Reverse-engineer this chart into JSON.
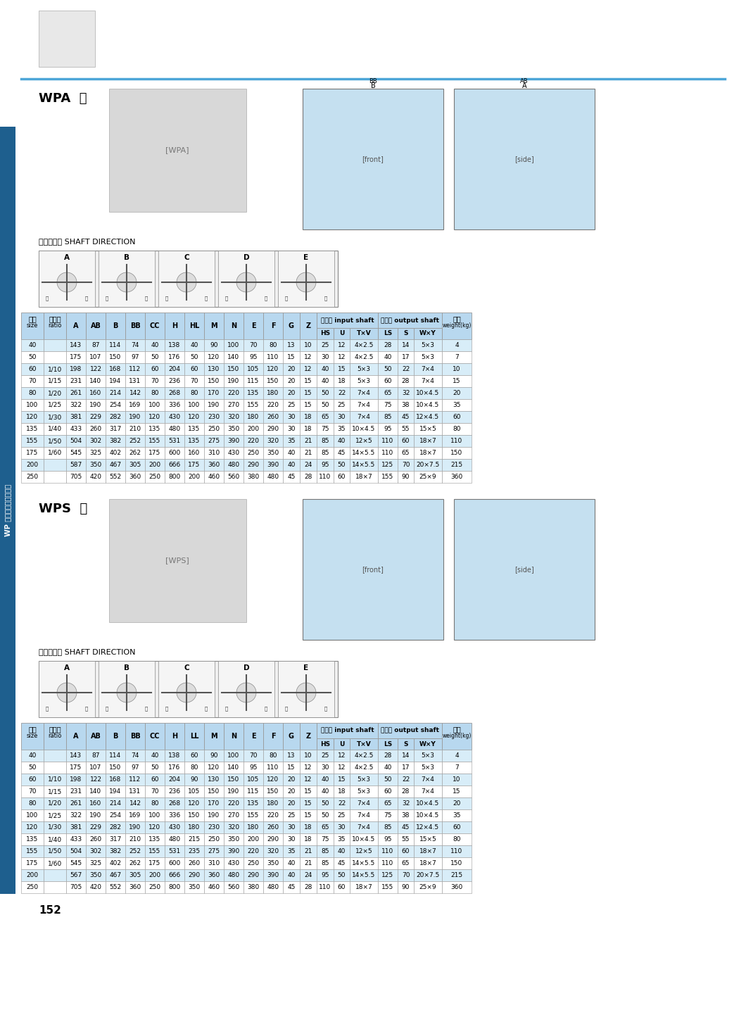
{
  "page_num": "152",
  "blue_line_color": "#4da6d8",
  "table_header_bg": "#b8d8ef",
  "table_alt_row_bg": "#d8edf8",
  "table_border_color": "#999999",
  "section1_label": "WPA  型",
  "section2_label": "WPS  型",
  "shaft_direction_label": "轴指向表示 SHAFT DIRECTION",
  "wpa_az_cols": [
    "A",
    "AB",
    "B",
    "BB",
    "CC",
    "H",
    "HL",
    "M",
    "N",
    "E",
    "F",
    "G",
    "Z"
  ],
  "wps_az_cols": [
    "A",
    "AB",
    "B",
    "BB",
    "CC",
    "H",
    "LL",
    "M",
    "N",
    "E",
    "F",
    "G",
    "Z"
  ],
  "sub_in": [
    "HS",
    "U",
    "T×V"
  ],
  "sub_out": [
    "LS",
    "S",
    "W×Y"
  ],
  "wpa_data": [
    [
      "40",
      "",
      "143",
      "87",
      "114",
      "74",
      "40",
      "138",
      "40",
      "90",
      "100",
      "70",
      "80",
      "13",
      "10",
      "25",
      "12",
      "4×2.5",
      "28",
      "14",
      "5×3",
      "4"
    ],
    [
      "50",
      "",
      "175",
      "107",
      "150",
      "97",
      "50",
      "176",
      "50",
      "120",
      "140",
      "95",
      "110",
      "15",
      "12",
      "30",
      "12",
      "4×2.5",
      "40",
      "17",
      "5×3",
      "7"
    ],
    [
      "60",
      "1/10",
      "198",
      "122",
      "168",
      "112",
      "60",
      "204",
      "60",
      "130",
      "150",
      "105",
      "120",
      "20",
      "12",
      "40",
      "15",
      "5×3",
      "50",
      "22",
      "7×4",
      "10"
    ],
    [
      "70",
      "1/15",
      "231",
      "140",
      "194",
      "131",
      "70",
      "236",
      "70",
      "150",
      "190",
      "115",
      "150",
      "20",
      "15",
      "40",
      "18",
      "5×3",
      "60",
      "28",
      "7×4",
      "15"
    ],
    [
      "80",
      "1/20",
      "261",
      "160",
      "214",
      "142",
      "80",
      "268",
      "80",
      "170",
      "220",
      "135",
      "180",
      "20",
      "15",
      "50",
      "22",
      "7×4",
      "65",
      "32",
      "10×4.5",
      "20"
    ],
    [
      "100",
      "1/25",
      "322",
      "190",
      "254",
      "169",
      "100",
      "336",
      "100",
      "190",
      "270",
      "155",
      "220",
      "25",
      "15",
      "50",
      "25",
      "7×4",
      "75",
      "38",
      "10×4.5",
      "35"
    ],
    [
      "120",
      "1/30",
      "381",
      "229",
      "282",
      "190",
      "120",
      "430",
      "120",
      "230",
      "320",
      "180",
      "260",
      "30",
      "18",
      "65",
      "30",
      "7×4",
      "85",
      "45",
      "12×4.5",
      "60"
    ],
    [
      "135",
      "1/40",
      "433",
      "260",
      "317",
      "210",
      "135",
      "480",
      "135",
      "250",
      "350",
      "200",
      "290",
      "30",
      "18",
      "75",
      "35",
      "10×4.5",
      "95",
      "55",
      "15×5",
      "80"
    ],
    [
      "155",
      "1/50",
      "504",
      "302",
      "382",
      "252",
      "155",
      "531",
      "135",
      "275",
      "390",
      "220",
      "320",
      "35",
      "21",
      "85",
      "40",
      "12×5",
      "110",
      "60",
      "18×7",
      "110"
    ],
    [
      "175",
      "1/60",
      "545",
      "325",
      "402",
      "262",
      "175",
      "600",
      "160",
      "310",
      "430",
      "250",
      "350",
      "40",
      "21",
      "85",
      "45",
      "14×5.5",
      "110",
      "65",
      "18×7",
      "150"
    ],
    [
      "200",
      "",
      "587",
      "350",
      "467",
      "305",
      "200",
      "666",
      "175",
      "360",
      "480",
      "290",
      "390",
      "40",
      "24",
      "95",
      "50",
      "14×5.5",
      "125",
      "70",
      "20×7.5",
      "215"
    ],
    [
      "250",
      "",
      "705",
      "420",
      "552",
      "360",
      "250",
      "800",
      "200",
      "460",
      "560",
      "380",
      "480",
      "45",
      "28",
      "110",
      "60",
      "18×7",
      "155",
      "90",
      "25×9",
      "360"
    ]
  ],
  "wps_data": [
    [
      "40",
      "",
      "143",
      "87",
      "114",
      "74",
      "40",
      "138",
      "60",
      "90",
      "100",
      "70",
      "80",
      "13",
      "10",
      "25",
      "12",
      "4×2.5",
      "28",
      "14",
      "5×3",
      "4"
    ],
    [
      "50",
      "",
      "175",
      "107",
      "150",
      "97",
      "50",
      "176",
      "80",
      "120",
      "140",
      "95",
      "110",
      "15",
      "12",
      "30",
      "12",
      "4×2.5",
      "40",
      "17",
      "5×3",
      "7"
    ],
    [
      "60",
      "1/10",
      "198",
      "122",
      "168",
      "112",
      "60",
      "204",
      "90",
      "130",
      "150",
      "105",
      "120",
      "20",
      "12",
      "40",
      "15",
      "5×3",
      "50",
      "22",
      "7×4",
      "10"
    ],
    [
      "70",
      "1/15",
      "231",
      "140",
      "194",
      "131",
      "70",
      "236",
      "105",
      "150",
      "190",
      "115",
      "150",
      "20",
      "15",
      "40",
      "18",
      "5×3",
      "60",
      "28",
      "7×4",
      "15"
    ],
    [
      "80",
      "1/20",
      "261",
      "160",
      "214",
      "142",
      "80",
      "268",
      "120",
      "170",
      "220",
      "135",
      "180",
      "20",
      "15",
      "50",
      "22",
      "7×4",
      "65",
      "32",
      "10×4.5",
      "20"
    ],
    [
      "100",
      "1/25",
      "322",
      "190",
      "254",
      "169",
      "100",
      "336",
      "150",
      "190",
      "270",
      "155",
      "220",
      "25",
      "15",
      "50",
      "25",
      "7×4",
      "75",
      "38",
      "10×4.5",
      "35"
    ],
    [
      "120",
      "1/30",
      "381",
      "229",
      "282",
      "190",
      "120",
      "430",
      "180",
      "230",
      "320",
      "180",
      "260",
      "30",
      "18",
      "65",
      "30",
      "7×4",
      "85",
      "45",
      "12×4.5",
      "60"
    ],
    [
      "135",
      "1/40",
      "433",
      "260",
      "317",
      "210",
      "135",
      "480",
      "215",
      "250",
      "350",
      "200",
      "290",
      "30",
      "18",
      "75",
      "35",
      "10×4.5",
      "95",
      "55",
      "15×5",
      "80"
    ],
    [
      "155",
      "1/50",
      "504",
      "302",
      "382",
      "252",
      "155",
      "531",
      "235",
      "275",
      "390",
      "220",
      "320",
      "35",
      "21",
      "85",
      "40",
      "12×5",
      "110",
      "60",
      "18×7",
      "110"
    ],
    [
      "175",
      "1/60",
      "545",
      "325",
      "402",
      "262",
      "175",
      "600",
      "260",
      "310",
      "430",
      "250",
      "350",
      "40",
      "21",
      "85",
      "45",
      "14×5.5",
      "110",
      "65",
      "18×7",
      "150"
    ],
    [
      "200",
      "",
      "567",
      "350",
      "467",
      "305",
      "200",
      "666",
      "290",
      "360",
      "480",
      "290",
      "390",
      "40",
      "24",
      "95",
      "50",
      "14×5.5",
      "125",
      "70",
      "20×7.5",
      "215"
    ],
    [
      "250",
      "",
      "705",
      "420",
      "552",
      "360",
      "250",
      "800",
      "350",
      "460",
      "560",
      "380",
      "480",
      "45",
      "28",
      "110",
      "60",
      "18×7",
      "155",
      "90",
      "25×9",
      "360"
    ]
  ],
  "side_label": "WP 系列蜇轮蜇杆减速机",
  "bg_color": "#ffffff",
  "side_bg_color": "#1e5f8e"
}
